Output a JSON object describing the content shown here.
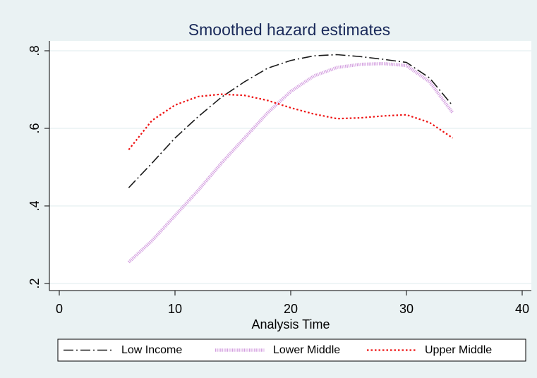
{
  "chart_data": {
    "type": "line",
    "title": "Smoothed hazard estimates",
    "x_label": "Analysis Time",
    "x": [
      6,
      8,
      10,
      12,
      14,
      16,
      18,
      20,
      22,
      24,
      26,
      28,
      30,
      32,
      34
    ],
    "series": [
      {
        "name": "Low Income",
        "color": "#1a1a1a",
        "line_style": "dashdot",
        "values": [
          0.447,
          0.51,
          0.575,
          0.63,
          0.68,
          0.72,
          0.755,
          0.775,
          0.787,
          0.79,
          0.785,
          0.778,
          0.77,
          0.73,
          0.658
        ]
      },
      {
        "name": "Lower Middle",
        "color": "#d4a0e0",
        "line_style": "thick",
        "values": [
          0.255,
          0.31,
          0.375,
          0.44,
          0.51,
          0.575,
          0.64,
          0.695,
          0.735,
          0.757,
          0.765,
          0.767,
          0.762,
          0.72,
          0.64
        ]
      },
      {
        "name": "Upper Middle",
        "color": "#ee1111",
        "line_style": "dotted",
        "values": [
          0.545,
          0.62,
          0.66,
          0.682,
          0.688,
          0.685,
          0.672,
          0.653,
          0.637,
          0.625,
          0.627,
          0.632,
          0.635,
          0.615,
          0.575
        ]
      }
    ],
    "xlim": [
      0,
      40
    ],
    "xticks": [
      0,
      10,
      20,
      30,
      40
    ],
    "ylim": [
      0.2,
      0.8
    ],
    "yticks": [
      {
        "value": 0.2,
        "label": ".2"
      },
      {
        "value": 0.4,
        "label": ".4"
      },
      {
        "value": 0.6,
        "label": ".6"
      },
      {
        "value": 0.8,
        "label": ".8"
      }
    ],
    "grid": true,
    "legend": "bottom"
  }
}
